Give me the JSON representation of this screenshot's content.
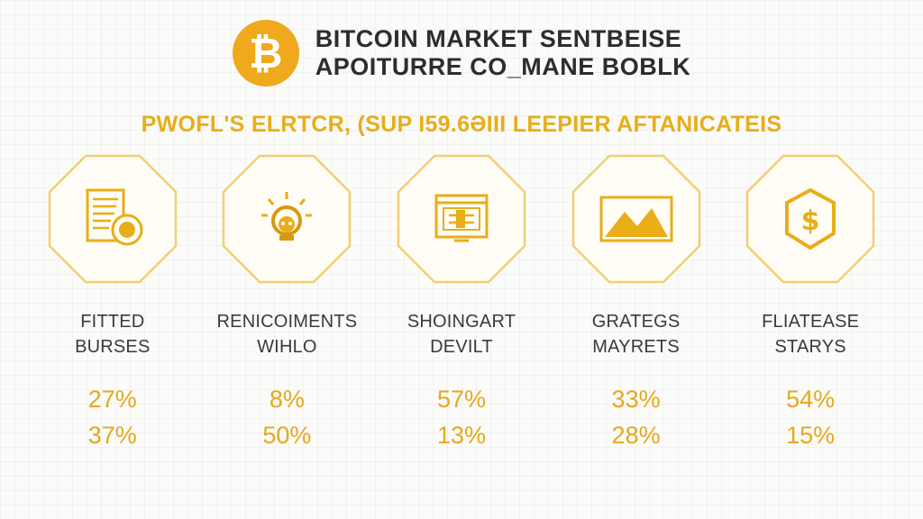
{
  "header": {
    "logo_symbol": "₿",
    "title_line1": "BITCOIN MARKET SENTBEISE",
    "title_line2": "APOITURRE CO_MANE BOBLK"
  },
  "subtitle": "PWOFL'S ELRTCR, (SUP I59.6ƏIII LEEPIER AFTANICATEIS",
  "colors": {
    "accent": "#f0a81c",
    "text": "#2d2d2d",
    "frame": "#f1cf72"
  },
  "items": [
    {
      "icon": "document-coin-icon",
      "label_line1": "FITTED",
      "label_line2": "BURSES",
      "pct1": "27%",
      "pct2": "37%"
    },
    {
      "icon": "lightbulb-face-icon",
      "label_line1": "RENICOIMENTS",
      "label_line2": "WIHLO",
      "pct1": "8%",
      "pct2": "50%"
    },
    {
      "icon": "window-chart-icon",
      "label_line1": "SHOINGART",
      "label_line2": "DEVILT",
      "pct1": "57%",
      "pct2": "13%"
    },
    {
      "icon": "mountain-chart-icon",
      "label_line1": "GRATEGS",
      "label_line2": "MAYRETS",
      "pct1": "33%",
      "pct2": "28%"
    },
    {
      "icon": "dollar-shield-icon",
      "label_line1": "FLIATEASE",
      "label_line2": "STARYS",
      "pct1": "54%",
      "pct2": "15%"
    }
  ]
}
